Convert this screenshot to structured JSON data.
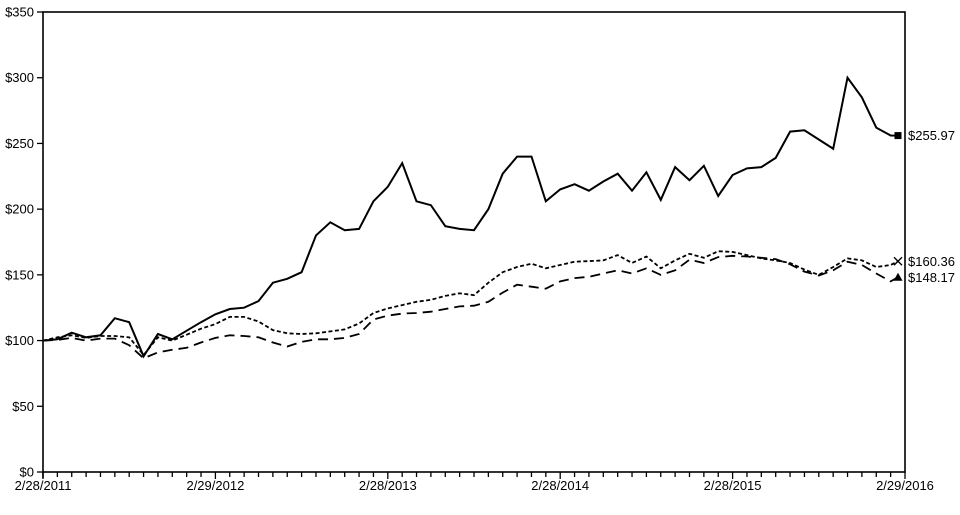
{
  "chart_data": {
    "type": "line",
    "title": "",
    "legend": "none",
    "grid": "off",
    "background_color": "#ffffff",
    "line_color": "#000000",
    "x_axis": {
      "tick_labels": [
        "2/28/2011",
        "2/29/2012",
        "2/28/2013",
        "2/28/2014",
        "2/28/2015",
        "2/29/2016"
      ],
      "tick_positions_months": [
        0,
        12,
        24,
        36,
        48,
        60
      ],
      "minor_tick_every_months": 1,
      "range_months": [
        0,
        60
      ]
    },
    "y_axis": {
      "tick_labels": [
        "$0",
        "$50",
        "$100",
        "$150",
        "$200",
        "$250",
        "$300",
        "$350"
      ],
      "tick_values": [
        0,
        50,
        100,
        150,
        200,
        250,
        300,
        350
      ],
      "range": [
        0,
        350
      ]
    },
    "series": [
      {
        "name": "solid-line",
        "style": "solid",
        "end_marker": "square",
        "end_label": "$255.97",
        "end_value": 255.97,
        "values": [
          100,
          101,
          106,
          102.5,
          104,
          117,
          114,
          88,
          105,
          101,
          107.5,
          114,
          120,
          124,
          125,
          130,
          144,
          147,
          152,
          180,
          190,
          184,
          185,
          206,
          217,
          235,
          206,
          203,
          187,
          185,
          184,
          200,
          227,
          240,
          240,
          206,
          215,
          219,
          214,
          221,
          227,
          214,
          228,
          207,
          232,
          222,
          233,
          210,
          226,
          231,
          232,
          239,
          259,
          260,
          253,
          246,
          300,
          285,
          262,
          256,
          255.97
        ]
      },
      {
        "name": "short-dash-line",
        "style": "short-dash",
        "end_marker": "x",
        "end_label": "$160.36",
        "end_value": 160.36,
        "values": [
          100,
          102.5,
          104,
          102,
          103.5,
          103.5,
          102.5,
          89,
          102.5,
          100,
          104.5,
          109,
          112.5,
          118,
          118,
          114.5,
          108,
          105.5,
          105,
          105.5,
          107,
          108.5,
          113,
          121,
          124.5,
          127,
          129.5,
          131,
          134,
          136,
          134.5,
          144,
          152,
          156,
          158.5,
          155,
          157.5,
          160,
          160.5,
          161,
          165,
          159,
          164,
          155,
          161,
          166,
          163,
          168,
          167.5,
          165,
          162.5,
          161,
          159,
          154,
          150,
          156,
          162.5,
          161,
          156,
          157.5,
          160.36
        ]
      },
      {
        "name": "long-dash-line",
        "style": "long-dash",
        "end_marker": "triangle",
        "end_label": "$148.17",
        "end_value": 148.17,
        "values": [
          100,
          100.5,
          102,
          100,
          101.5,
          101.5,
          96.5,
          86.5,
          91,
          93,
          94.5,
          98.5,
          102,
          104,
          103.5,
          102.5,
          98.5,
          95.5,
          99,
          101,
          101,
          102,
          105,
          116,
          119,
          120.5,
          121,
          122,
          124,
          126,
          126.5,
          129.5,
          136.5,
          142.5,
          141,
          139.5,
          145,
          147.5,
          148.5,
          151,
          153.5,
          151,
          155,
          150,
          153.5,
          161.5,
          159,
          163.5,
          164.5,
          164,
          163,
          162,
          158,
          152.5,
          149.5,
          153.5,
          160,
          157.5,
          151,
          145,
          148.17
        ]
      }
    ]
  }
}
